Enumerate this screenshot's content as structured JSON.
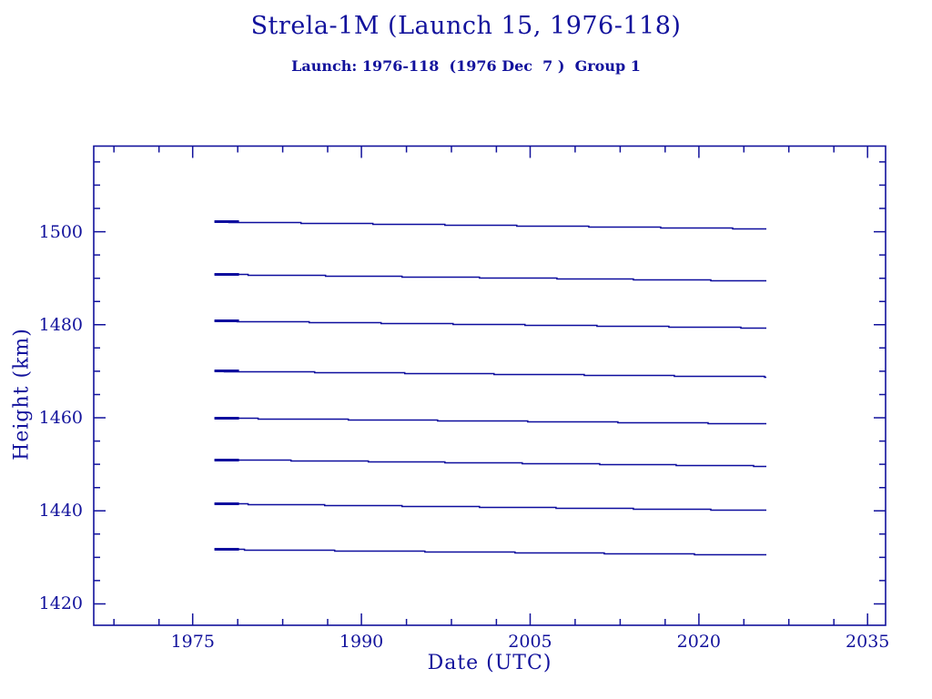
{
  "page": {
    "background": "#ffffff"
  },
  "chart_data": {
    "type": "line",
    "title": "Strela-1M (Launch 15, 1976-118)",
    "subtitle": "Launch: 1976-118  (1976 Dec  7 )  Group 1",
    "xlabel": "Date (UTC)",
    "ylabel": "Height (km)",
    "color": "#12129c",
    "line_color": "#0d0d9e",
    "grid": false,
    "legend": "none",
    "xlim": [
      1966.2,
      2036.6
    ],
    "ylim": [
      1415.4,
      1518.4
    ],
    "x_major_ticks": [
      1975,
      1990,
      2005,
      2020,
      2035
    ],
    "x_minor_ticks": [
      1968,
      1972,
      1979,
      1983,
      1987,
      1994,
      1998,
      2002,
      2009,
      2013,
      2017,
      2024,
      2028,
      2032
    ],
    "y_major_ticks": [
      1420,
      1440,
      1460,
      1480,
      1500
    ],
    "y_minor_ticks": [
      1425,
      1430,
      1435,
      1445,
      1450,
      1455,
      1465,
      1470,
      1475,
      1485,
      1490,
      1495,
      1505,
      1510,
      1515
    ],
    "series": [
      {
        "start_year": 1976.93,
        "end_year": 2026.0,
        "start_height_km": 1502.2,
        "end_height_km": 1500.7
      },
      {
        "start_year": 1976.93,
        "end_year": 2026.0,
        "start_height_km": 1490.9,
        "end_height_km": 1489.5
      },
      {
        "start_year": 1976.93,
        "end_year": 2026.0,
        "start_height_km": 1480.9,
        "end_height_km": 1479.4
      },
      {
        "start_year": 1976.93,
        "end_year": 2026.0,
        "start_height_km": 1470.1,
        "end_height_km": 1468.9
      },
      {
        "start_year": 1976.93,
        "end_year": 2026.0,
        "start_height_km": 1460.0,
        "end_height_km": 1458.8
      },
      {
        "start_year": 1976.93,
        "end_year": 2026.0,
        "start_height_km": 1451.1,
        "end_height_km": 1449.7
      },
      {
        "start_year": 1976.93,
        "end_year": 2026.0,
        "start_height_km": 1441.6,
        "end_height_km": 1440.2
      },
      {
        "start_year": 1976.93,
        "end_year": 2026.0,
        "start_height_km": 1431.8,
        "end_height_km": 1430.6
      }
    ]
  }
}
